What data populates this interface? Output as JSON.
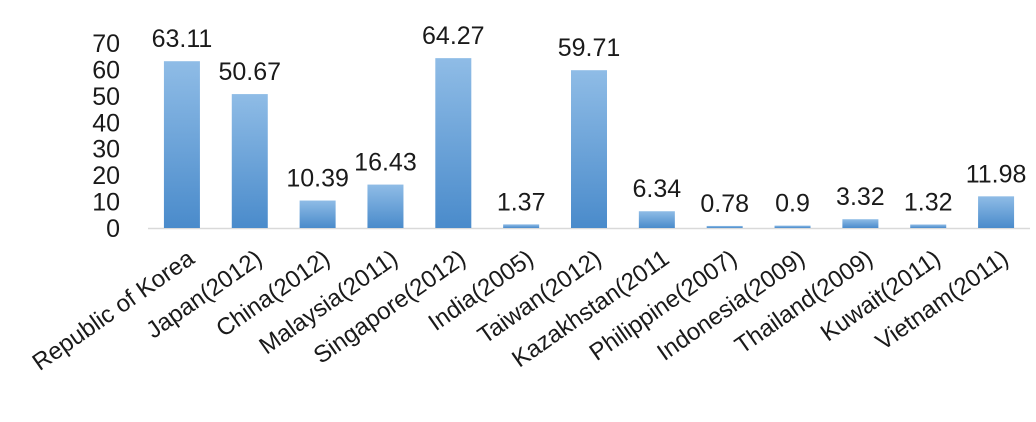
{
  "chart_data": {
    "type": "bar",
    "categories": [
      "Republic of Korea",
      "Japan(2012)",
      "China(2012)",
      "Malaysia(2011)",
      "Singapore(2012)",
      "India(2005)",
      "Taiwan(2012)",
      "Kazakhstan(2011",
      "Philippine(2007)",
      "Indonesia(2009)",
      "Thailand(2009)",
      "Kuwait(2011)",
      "Vietnam(2011)"
    ],
    "values": [
      63.11,
      50.67,
      10.39,
      16.43,
      64.27,
      1.37,
      59.71,
      6.34,
      0.78,
      0.9,
      3.32,
      1.32,
      11.98
    ],
    "value_labels": [
      "63.11",
      "50.67",
      "10.39",
      "16.43",
      "64.27",
      "1.37",
      "59.71",
      "6.34",
      "0.78",
      "0.9",
      "3.32",
      "1.32",
      "11.98"
    ],
    "ylim": [
      0,
      70
    ],
    "yticks": [
      0,
      10,
      20,
      30,
      40,
      50,
      60,
      70
    ],
    "grid": false,
    "legend": "none",
    "bar_color": "#5b9bd5",
    "bar_color_light": "#8fbce6"
  }
}
